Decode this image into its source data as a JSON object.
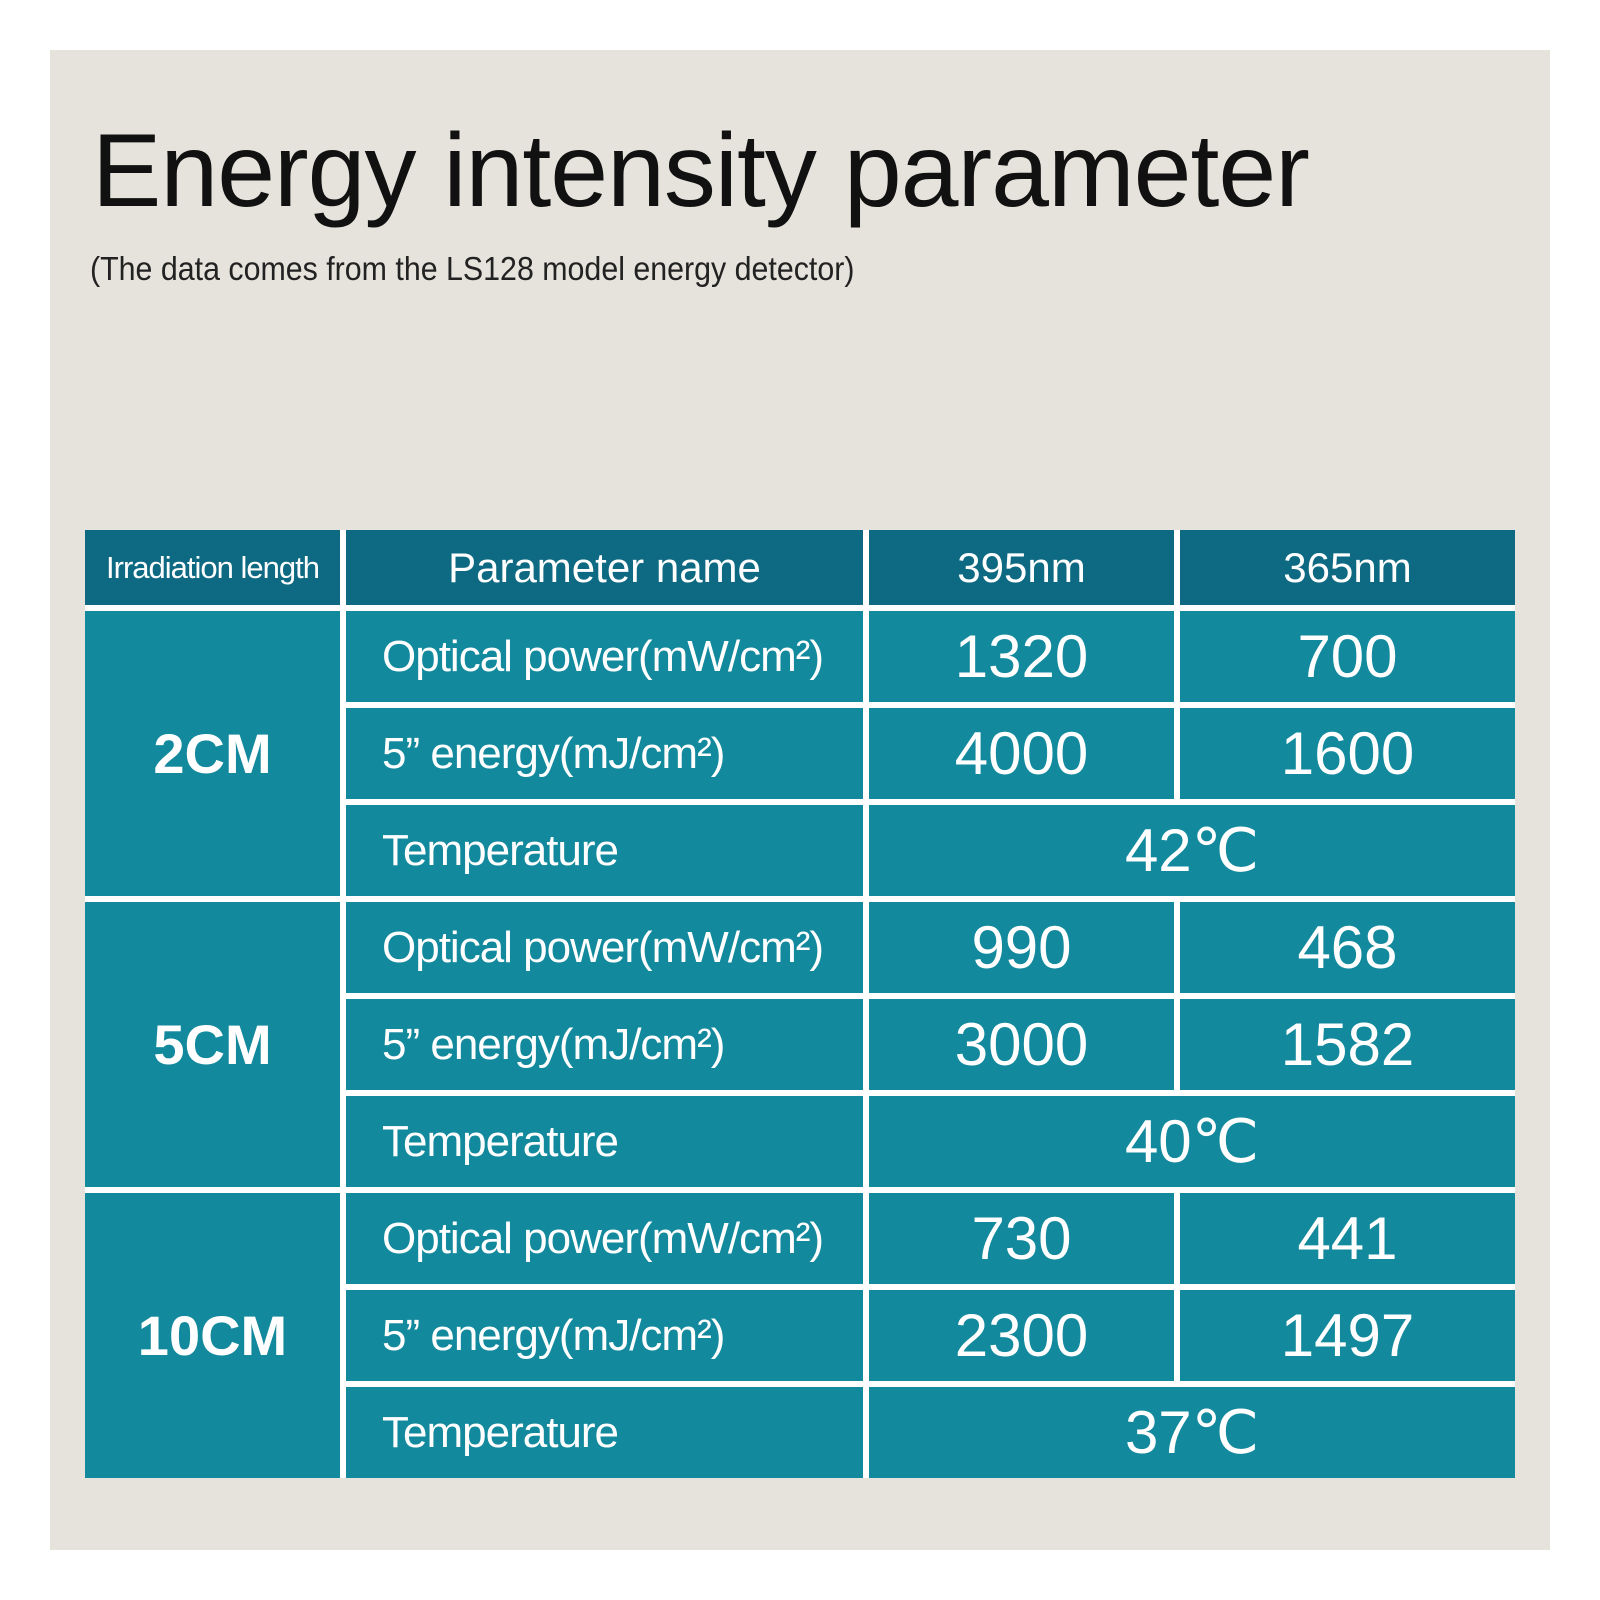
{
  "header": {
    "title": "Energy intensity parameter",
    "subtitle": "(The data comes from the LS128 model energy detector)"
  },
  "table": {
    "columns": [
      "Irradiation length",
      "Parameter name",
      "395nm",
      "365nm"
    ],
    "groups": [
      {
        "length": "2CM",
        "rows": [
          {
            "name": "Optical power(mW/cm²)",
            "values": [
              1320,
              700
            ]
          },
          {
            "name": "5” energy(mJ/cm²)",
            "values": [
              4000,
              1600
            ]
          },
          {
            "name": "Temperature",
            "value": "42℃"
          }
        ]
      },
      {
        "length": "5CM",
        "rows": [
          {
            "name": "Optical power(mW/cm²)",
            "values": [
              990,
              468
            ]
          },
          {
            "name": "5” energy(mJ/cm²)",
            "values": [
              3000,
              1582
            ]
          },
          {
            "name": "Temperature",
            "value": "40℃"
          }
        ]
      },
      {
        "length": "10CM",
        "rows": [
          {
            "name": "Optical power(mW/cm²)",
            "values": [
              730,
              441
            ]
          },
          {
            "name": "5” energy(mJ/cm²)",
            "values": [
              2300,
              1497
            ]
          },
          {
            "name": "Temperature",
            "value": "37℃"
          }
        ]
      }
    ]
  }
}
